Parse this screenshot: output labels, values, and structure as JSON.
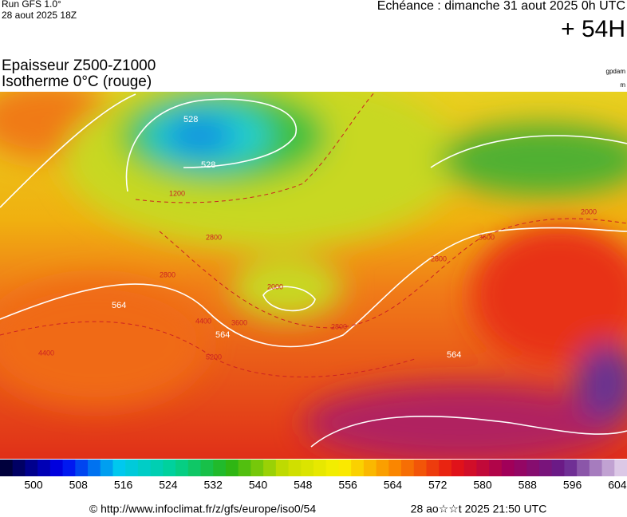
{
  "header": {
    "run": "Run GFS 1.0°",
    "run_date": "28 aout 2025 18Z",
    "valid": "Echéance : dimanche 31 aout 2025 0h UTC",
    "lead": "+ 54H",
    "title_1": "Epaisseur Z500-Z1000",
    "title_2": "Isotherme 0°C (rouge)",
    "unit_1": "gpdam",
    "unit_2": "m"
  },
  "map": {
    "labels": {
      "thickness": [
        "528",
        "528",
        "564",
        "564",
        "564"
      ],
      "iso0": [
        "1200",
        "2800",
        "2800",
        "3600",
        "4400",
        "5200",
        "2000",
        "2800",
        "4400",
        "2000",
        "3600",
        "2800"
      ]
    }
  },
  "colorbar": {
    "labels": [
      "500",
      "508",
      "516",
      "524",
      "532",
      "540",
      "548",
      "556",
      "564",
      "572",
      "580",
      "588",
      "596",
      "604"
    ]
  },
  "footer": {
    "source": "© http://www.infoclimat.fr/z/gfs/europe/iso0/54",
    "generated": "28 ao☆☆t 2025 21:50 UTC"
  }
}
